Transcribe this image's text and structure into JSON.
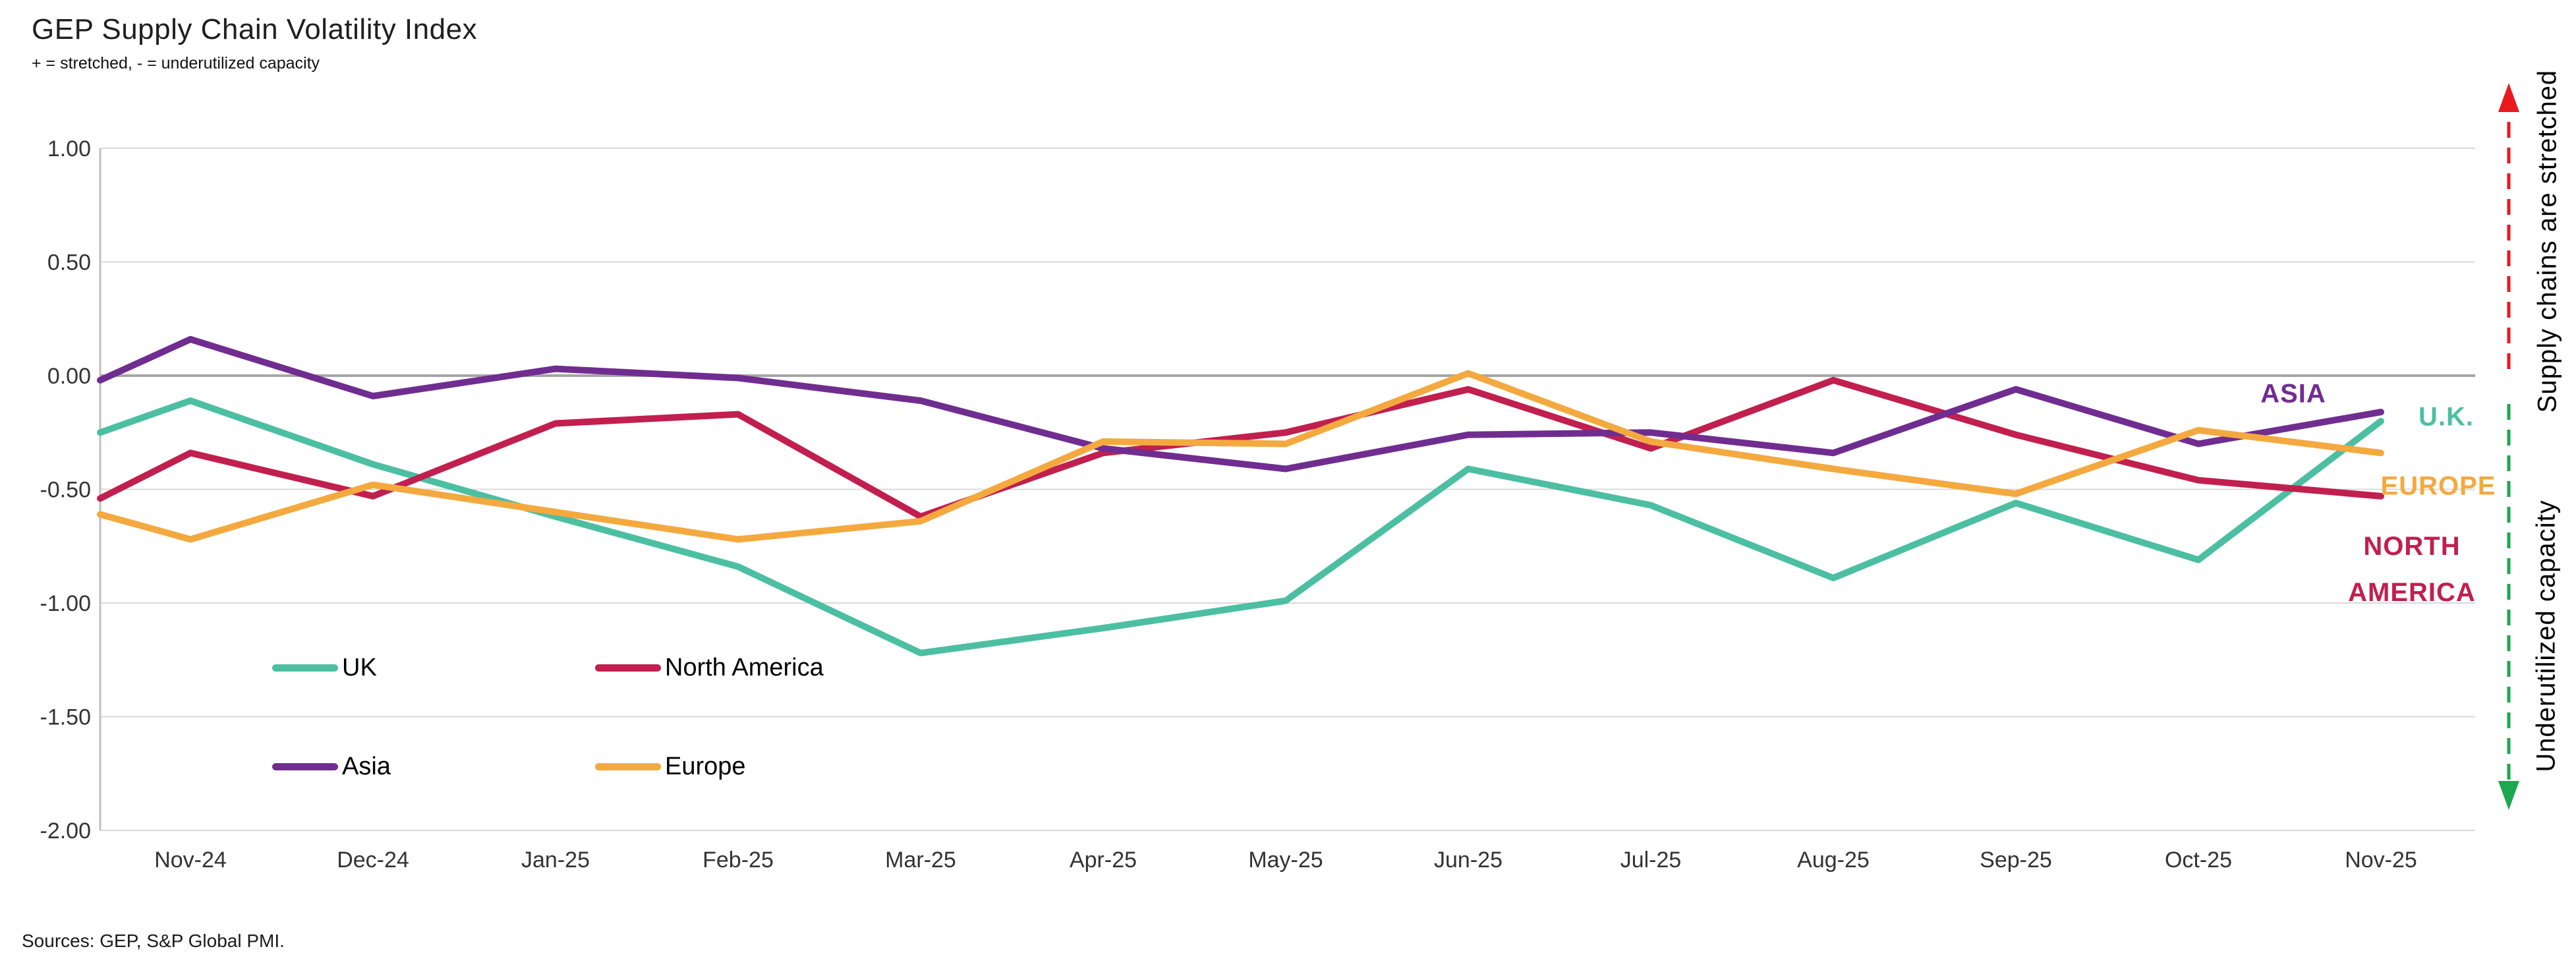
{
  "header": {
    "title": "GEP Supply Chain Volatility Index",
    "subtitle": "+ = stretched, - = underutilized capacity"
  },
  "footer": {
    "source_note": "Sources: GEP, S&P Global PMI."
  },
  "right_annotations": {
    "top": {
      "text": "Supply chains are stretched",
      "color": "#e9191d"
    },
    "bottom": {
      "text": "Underutilized capacity",
      "color": "#1da750"
    }
  },
  "chart_data": {
    "type": "line",
    "title": "GEP Supply Chain Volatility Index",
    "categories": [
      "Nov-24",
      "Dec-24",
      "Jan-25",
      "Feb-25",
      "Mar-25",
      "Apr-25",
      "May-25",
      "Jun-25",
      "Jul-25",
      "Aug-25",
      "Sep-25",
      "Oct-25",
      "Nov-25"
    ],
    "series": [
      {
        "name": "UK",
        "end_label": "U.K.",
        "color": "#4cbfa2",
        "clipped_start_value": -0.25,
        "values": [
          -0.11,
          -0.39,
          -0.62,
          -0.84,
          -1.22,
          -1.11,
          -0.99,
          -0.41,
          -0.57,
          -0.89,
          -0.56,
          -0.81,
          -0.2
        ]
      },
      {
        "name": "North America",
        "end_label": "NORTH AMERICA",
        "color": "#c11f4f",
        "clipped_start_value": -0.54,
        "values": [
          -0.34,
          -0.53,
          -0.21,
          -0.17,
          -0.62,
          -0.34,
          -0.25,
          -0.06,
          -0.32,
          -0.02,
          -0.26,
          -0.46,
          -0.53
        ]
      },
      {
        "name": "Asia",
        "end_label": "ASIA",
        "color": "#702d90",
        "clipped_start_value": -0.02,
        "values": [
          0.16,
          -0.09,
          0.03,
          -0.01,
          -0.11,
          -0.32,
          -0.41,
          -0.26,
          -0.25,
          -0.34,
          -0.06,
          -0.3,
          -0.16
        ]
      },
      {
        "name": "Europe",
        "end_label": "EUROPE",
        "color": "#f4a93f",
        "clipped_start_value": -0.61,
        "values": [
          -0.72,
          -0.48,
          -0.6,
          -0.72,
          -0.64,
          -0.29,
          -0.3,
          0.01,
          -0.29,
          -0.41,
          -0.52,
          -0.24,
          -0.34
        ]
      }
    ],
    "ylim": [
      -2.0,
      1.0
    ],
    "yticks": [
      {
        "label": "1.00",
        "value": 1.0
      },
      {
        "label": "0.50",
        "value": 0.5
      },
      {
        "label": "0.00",
        "value": 0.0
      },
      {
        "label": "-0.50",
        "value": -0.5
      },
      {
        "label": "-1.00",
        "value": -1.0
      },
      {
        "label": "-1.50",
        "value": -1.5
      },
      {
        "label": "-2.00",
        "value": -2.0
      }
    ],
    "grid": true,
    "grid_color": "#d9d9d9",
    "zero_line_color": "#a6a6a6",
    "axis_line_color": "#bfbfbf",
    "label_color": "#333333",
    "legend_position": "inside-bottom-left"
  }
}
